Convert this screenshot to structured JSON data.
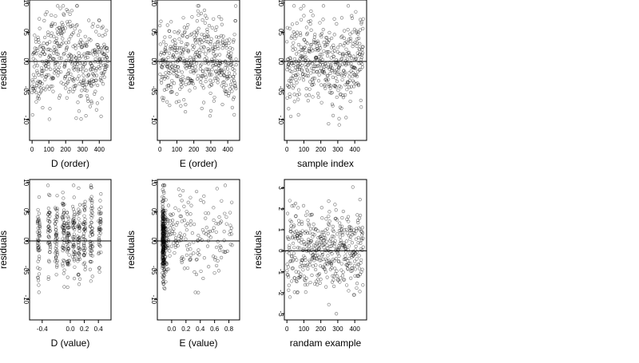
{
  "chart_data": [
    {
      "type": "scatter",
      "xlabel": "D (order)",
      "ylabel": "residuals",
      "xlim": [
        -15,
        470
      ],
      "ylim": [
        -13.5,
        10.5
      ],
      "xticks": [
        0,
        100,
        200,
        300,
        400
      ],
      "yticks": [
        -10,
        -5,
        0,
        5,
        10
      ],
      "ytick_labels": [
        "-10",
        "-05",
        "00",
        "05",
        "10"
      ],
      "reference_line_y": 0,
      "x_range": [
        0,
        450
      ],
      "y_range": [
        -12.5,
        9.5
      ],
      "n_points": 450,
      "seed": 11,
      "pattern": "index_wave"
    },
    {
      "type": "scatter",
      "xlabel": "E (order)",
      "ylabel": "residuals",
      "xlim": [
        -15,
        470
      ],
      "ylim": [
        -13.5,
        10.5
      ],
      "xticks": [
        0,
        100,
        200,
        300,
        400
      ],
      "yticks": [
        -10,
        -5,
        0,
        5,
        10
      ],
      "ytick_labels": [
        "-10",
        "-05",
        "00",
        "05",
        "10"
      ],
      "reference_line_y": 0,
      "x_range": [
        0,
        450
      ],
      "y_range": [
        -12.5,
        9.5
      ],
      "n_points": 450,
      "seed": 23,
      "pattern": "index_wave"
    },
    {
      "type": "scatter",
      "xlabel": "sample index",
      "ylabel": "residuals",
      "xlim": [
        -15,
        470
      ],
      "ylim": [
        -13.5,
        10.5
      ],
      "xticks": [
        0,
        100,
        200,
        300,
        400
      ],
      "yticks": [
        -10,
        -5,
        0,
        5,
        10
      ],
      "ytick_labels": [
        "-10",
        "-05",
        "00",
        "05",
        "10"
      ],
      "reference_line_y": 0,
      "x_range": [
        0,
        450
      ],
      "y_range": [
        -12.5,
        9.5
      ],
      "n_points": 450,
      "seed": 37,
      "pattern": "index_wave"
    },
    {
      "type": "scatter",
      "xlabel": "D (value)",
      "ylabel": "residuals",
      "xlim": [
        -0.58,
        0.58
      ],
      "ylim": [
        -13.5,
        10.5
      ],
      "xticks": [
        -0.4,
        0.0,
        0.2,
        0.4
      ],
      "xtick_labels": [
        "-0.4",
        "0.0",
        "0.2",
        "0.4"
      ],
      "yticks": [
        -10,
        -5,
        0,
        5,
        10
      ],
      "ytick_labels": [
        "-10",
        "-05",
        "00",
        "05",
        "10"
      ],
      "reference_line_y": 0,
      "x_range": [
        -0.5,
        0.5
      ],
      "y_range": [
        -12.5,
        9.5
      ],
      "n_points": 450,
      "seed": 51,
      "pattern": "discrete_columns",
      "column_centers": [
        -0.45,
        -0.3,
        -0.2,
        -0.1,
        -0.03,
        0.05,
        0.12,
        0.2,
        0.3,
        0.42
      ]
    },
    {
      "type": "scatter",
      "xlabel": "E (value)",
      "ylabel": "residuals",
      "xlim": [
        -0.2,
        0.95
      ],
      "ylim": [
        -13.5,
        10.5
      ],
      "xticks": [
        0.0,
        0.2,
        0.4,
        0.6,
        0.8
      ],
      "xtick_labels": [
        "0.0",
        "0.2",
        "0.4",
        "0.6",
        "0.8"
      ],
      "yticks": [
        -10,
        -5,
        0,
        5,
        10
      ],
      "ytick_labels": [
        "-10",
        "-05",
        "00",
        "05",
        "10"
      ],
      "reference_line_y": 0,
      "x_range": [
        -0.15,
        0.9
      ],
      "y_range": [
        -12.5,
        9.5
      ],
      "n_points": 450,
      "seed": 67,
      "pattern": "skewed_left"
    },
    {
      "type": "scatter",
      "xlabel": "randam example",
      "ylabel": "residuals",
      "xlim": [
        -15,
        470
      ],
      "ylim": [
        -3.3,
        3.4
      ],
      "xticks": [
        0,
        100,
        200,
        300,
        400
      ],
      "yticks": [
        -3,
        -2,
        -1,
        0,
        1,
        2,
        3
      ],
      "ytick_labels": [
        "-3",
        "-2",
        "-1",
        "0",
        "1",
        "2",
        "3"
      ],
      "reference_line_y": 0,
      "x_range": [
        0,
        450
      ],
      "y_range": [
        -3.1,
        3.1
      ],
      "n_points": 450,
      "seed": 83,
      "pattern": "gaussian"
    }
  ]
}
